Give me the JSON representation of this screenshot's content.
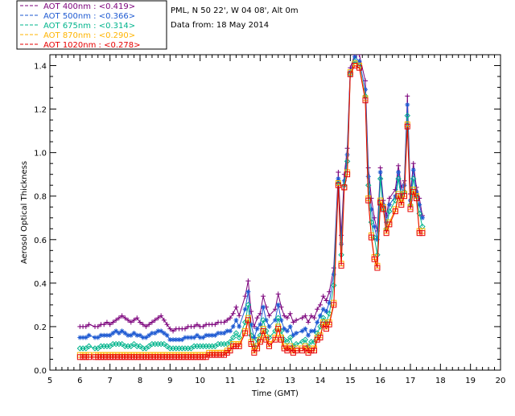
{
  "header": {
    "site_line": "PML, N 50 22', W 04 08', Alt 0m",
    "date_line": "Data from: 18 May 2014"
  },
  "chart_data": {
    "type": "line",
    "title": "",
    "xlabel": "Time (GMT)",
    "ylabel": "Aerosol Optical Thickness",
    "xlim": [
      5,
      20
    ],
    "ylim": [
      0.0,
      1.45
    ],
    "xticks": [
      5,
      6,
      7,
      8,
      9,
      10,
      11,
      12,
      13,
      14,
      15,
      16,
      17,
      18,
      19,
      20
    ],
    "yticks": [
      0.0,
      0.2,
      0.4,
      0.6,
      0.8,
      1.0,
      1.2,
      1.4
    ],
    "grid": false,
    "legend_position": "top-left, outside plot",
    "x": [
      6.0,
      6.1,
      6.2,
      6.3,
      6.5,
      6.6,
      6.7,
      6.8,
      6.9,
      7.0,
      7.1,
      7.2,
      7.3,
      7.4,
      7.5,
      7.6,
      7.7,
      7.8,
      7.9,
      8.0,
      8.1,
      8.2,
      8.3,
      8.4,
      8.5,
      8.6,
      8.7,
      8.8,
      8.9,
      9.0,
      9.1,
      9.2,
      9.3,
      9.4,
      9.5,
      9.6,
      9.7,
      9.8,
      9.9,
      10.0,
      10.1,
      10.2,
      10.3,
      10.4,
      10.5,
      10.6,
      10.7,
      10.8,
      10.9,
      11.0,
      11.1,
      11.2,
      11.3,
      11.5,
      11.6,
      11.7,
      11.8,
      11.9,
      12.0,
      12.1,
      12.2,
      12.3,
      12.5,
      12.6,
      12.7,
      12.8,
      12.9,
      13.0,
      13.1,
      13.2,
      13.4,
      13.5,
      13.6,
      13.7,
      13.8,
      13.9,
      14.0,
      14.1,
      14.2,
      14.3,
      14.45,
      14.6,
      14.7,
      14.8,
      14.9,
      15.0,
      15.15,
      15.3,
      15.5,
      15.6,
      15.7,
      15.8,
      15.9,
      16.0,
      16.1,
      16.2,
      16.3,
      16.5,
      16.6,
      16.7,
      16.8,
      16.9,
      17.0,
      17.1,
      17.2,
      17.3,
      17.4
    ],
    "series": [
      {
        "name": "AOT 400nm : <0.419>",
        "color": "#7b007b",
        "marker": "plus",
        "values": [
          0.2,
          0.2,
          0.2,
          0.21,
          0.2,
          0.2,
          0.21,
          0.21,
          0.22,
          0.21,
          0.22,
          0.23,
          0.24,
          0.25,
          0.24,
          0.23,
          0.22,
          0.23,
          0.24,
          0.22,
          0.21,
          0.2,
          0.21,
          0.22,
          0.23,
          0.24,
          0.25,
          0.23,
          0.21,
          0.19,
          0.18,
          0.19,
          0.19,
          0.19,
          0.19,
          0.2,
          0.2,
          0.2,
          0.21,
          0.2,
          0.2,
          0.21,
          0.21,
          0.21,
          0.21,
          0.22,
          0.22,
          0.22,
          0.23,
          0.24,
          0.26,
          0.29,
          0.25,
          0.34,
          0.41,
          0.27,
          0.2,
          0.24,
          0.26,
          0.34,
          0.29,
          0.25,
          0.28,
          0.35,
          0.29,
          0.25,
          0.24,
          0.26,
          0.22,
          0.23,
          0.24,
          0.25,
          0.22,
          0.25,
          0.24,
          0.28,
          0.3,
          0.34,
          0.32,
          0.36,
          0.47,
          0.91,
          0.62,
          0.9,
          1.02,
          1.39,
          1.45,
          1.45,
          1.33,
          0.93,
          0.79,
          0.7,
          0.64,
          0.93,
          0.78,
          0.71,
          0.79,
          0.83,
          0.94,
          0.84,
          0.87,
          1.26,
          0.81,
          0.95,
          0.84,
          0.79,
          0.71
        ]
      },
      {
        "name": "AOT 500nm : <0.366>",
        "color": "#1e5ad2",
        "marker": "star",
        "values": [
          0.15,
          0.15,
          0.15,
          0.16,
          0.15,
          0.15,
          0.16,
          0.16,
          0.16,
          0.16,
          0.17,
          0.18,
          0.17,
          0.18,
          0.17,
          0.16,
          0.16,
          0.17,
          0.16,
          0.16,
          0.15,
          0.15,
          0.16,
          0.17,
          0.17,
          0.18,
          0.18,
          0.17,
          0.16,
          0.14,
          0.14,
          0.14,
          0.14,
          0.14,
          0.15,
          0.15,
          0.15,
          0.15,
          0.16,
          0.15,
          0.15,
          0.16,
          0.16,
          0.16,
          0.16,
          0.17,
          0.17,
          0.17,
          0.18,
          0.18,
          0.2,
          0.23,
          0.2,
          0.28,
          0.36,
          0.21,
          0.15,
          0.19,
          0.21,
          0.29,
          0.23,
          0.2,
          0.23,
          0.3,
          0.23,
          0.19,
          0.18,
          0.2,
          0.16,
          0.17,
          0.18,
          0.19,
          0.16,
          0.18,
          0.18,
          0.22,
          0.25,
          0.28,
          0.27,
          0.31,
          0.44,
          0.88,
          0.58,
          0.87,
          0.99,
          1.37,
          1.44,
          1.42,
          1.29,
          0.89,
          0.74,
          0.66,
          0.6,
          0.91,
          0.76,
          0.68,
          0.76,
          0.8,
          0.91,
          0.81,
          0.85,
          1.22,
          0.78,
          0.92,
          0.82,
          0.76,
          0.7
        ]
      },
      {
        "name": "AOT 675nm : <0.314>",
        "color": "#00b48c",
        "marker": "diamond",
        "values": [
          0.1,
          0.1,
          0.1,
          0.11,
          0.1,
          0.1,
          0.11,
          0.11,
          0.11,
          0.11,
          0.12,
          0.12,
          0.12,
          0.12,
          0.11,
          0.11,
          0.11,
          0.12,
          0.11,
          0.11,
          0.1,
          0.1,
          0.11,
          0.12,
          0.12,
          0.12,
          0.12,
          0.12,
          0.11,
          0.1,
          0.1,
          0.1,
          0.1,
          0.1,
          0.1,
          0.1,
          0.1,
          0.11,
          0.11,
          0.11,
          0.11,
          0.11,
          0.11,
          0.11,
          0.11,
          0.12,
          0.12,
          0.12,
          0.12,
          0.13,
          0.15,
          0.17,
          0.15,
          0.22,
          0.3,
          0.16,
          0.11,
          0.14,
          0.16,
          0.23,
          0.18,
          0.15,
          0.18,
          0.24,
          0.18,
          0.14,
          0.13,
          0.15,
          0.11,
          0.12,
          0.13,
          0.14,
          0.11,
          0.13,
          0.13,
          0.17,
          0.2,
          0.24,
          0.22,
          0.26,
          0.39,
          0.86,
          0.53,
          0.85,
          0.96,
          1.36,
          1.42,
          1.4,
          1.26,
          0.85,
          0.68,
          0.61,
          0.53,
          0.88,
          0.74,
          0.65,
          0.73,
          0.78,
          0.88,
          0.79,
          0.82,
          1.17,
          0.76,
          0.88,
          0.8,
          0.72,
          0.66
        ]
      },
      {
        "name": "AOT 870nm : <0.290>",
        "color": "#ffb400",
        "marker": "square",
        "values": [
          0.07,
          0.07,
          0.07,
          0.07,
          0.07,
          0.07,
          0.07,
          0.07,
          0.07,
          0.07,
          0.07,
          0.07,
          0.07,
          0.07,
          0.07,
          0.07,
          0.07,
          0.07,
          0.07,
          0.07,
          0.07,
          0.07,
          0.07,
          0.07,
          0.07,
          0.07,
          0.07,
          0.07,
          0.07,
          0.07,
          0.07,
          0.07,
          0.07,
          0.07,
          0.07,
          0.07,
          0.07,
          0.07,
          0.07,
          0.07,
          0.07,
          0.07,
          0.08,
          0.08,
          0.08,
          0.08,
          0.08,
          0.08,
          0.09,
          0.1,
          0.12,
          0.12,
          0.12,
          0.18,
          0.24,
          0.13,
          0.09,
          0.11,
          0.14,
          0.19,
          0.15,
          0.12,
          0.15,
          0.2,
          0.15,
          0.11,
          0.1,
          0.11,
          0.09,
          0.1,
          0.1,
          0.11,
          0.09,
          0.1,
          0.1,
          0.15,
          0.16,
          0.22,
          0.2,
          0.22,
          0.31,
          0.86,
          0.49,
          0.84,
          0.91,
          1.37,
          1.41,
          1.4,
          1.25,
          0.79,
          0.62,
          0.52,
          0.48,
          0.78,
          0.75,
          0.64,
          0.68,
          0.74,
          0.81,
          0.77,
          0.81,
          1.13,
          0.75,
          0.83,
          0.8,
          0.64,
          0.64
        ]
      },
      {
        "name": "AOT 1020nm : <0.278>",
        "color": "#e60000",
        "marker": "square",
        "values": [
          0.06,
          0.06,
          0.06,
          0.06,
          0.06,
          0.06,
          0.06,
          0.06,
          0.06,
          0.06,
          0.06,
          0.06,
          0.06,
          0.06,
          0.06,
          0.06,
          0.06,
          0.06,
          0.06,
          0.06,
          0.06,
          0.06,
          0.06,
          0.06,
          0.06,
          0.06,
          0.06,
          0.06,
          0.06,
          0.06,
          0.06,
          0.06,
          0.06,
          0.06,
          0.06,
          0.06,
          0.06,
          0.06,
          0.06,
          0.06,
          0.06,
          0.06,
          0.07,
          0.07,
          0.07,
          0.07,
          0.07,
          0.07,
          0.08,
          0.09,
          0.11,
          0.11,
          0.11,
          0.17,
          0.23,
          0.12,
          0.08,
          0.1,
          0.13,
          0.18,
          0.14,
          0.11,
          0.14,
          0.19,
          0.14,
          0.1,
          0.09,
          0.1,
          0.08,
          0.09,
          0.09,
          0.1,
          0.08,
          0.09,
          0.09,
          0.14,
          0.15,
          0.21,
          0.19,
          0.21,
          0.3,
          0.85,
          0.48,
          0.84,
          0.9,
          1.36,
          1.4,
          1.39,
          1.24,
          0.78,
          0.61,
          0.51,
          0.47,
          0.77,
          0.74,
          0.63,
          0.67,
          0.73,
          0.8,
          0.76,
          0.8,
          1.12,
          0.74,
          0.82,
          0.79,
          0.63,
          0.63
        ]
      }
    ]
  }
}
